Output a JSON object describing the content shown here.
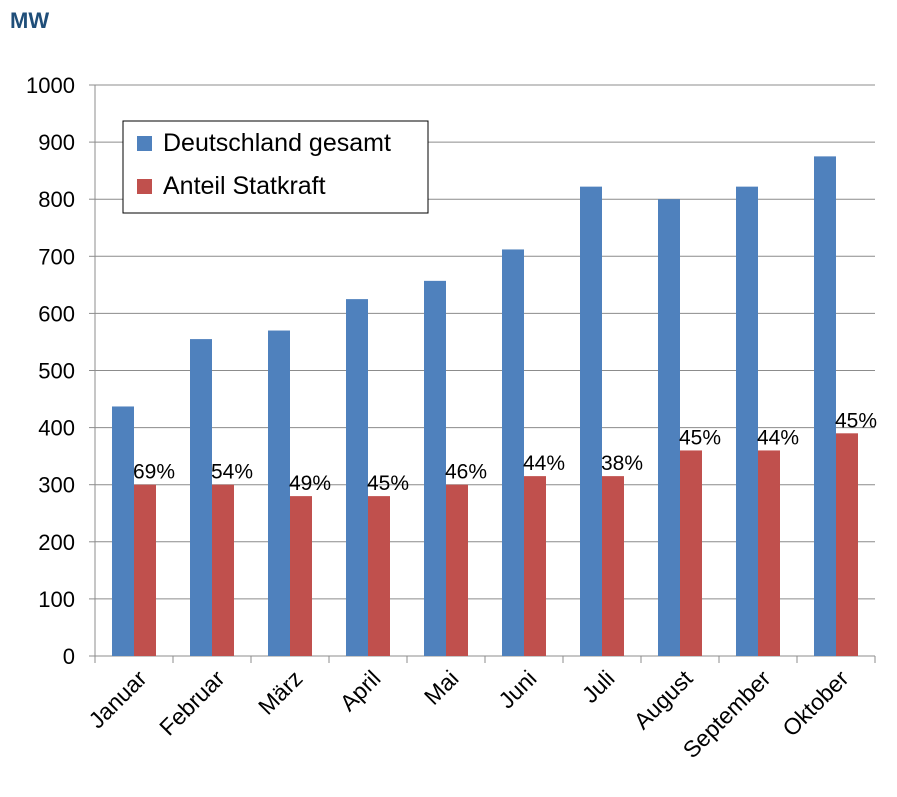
{
  "chart_data": {
    "type": "bar",
    "unit_label": "MW",
    "categories": [
      "Januar",
      "Februar",
      "März",
      "April",
      "Mai",
      "Juni",
      "Juli",
      "August",
      "September",
      "Oktober"
    ],
    "series": [
      {
        "name": "Deutschland gesamt",
        "color": "#4f81bd",
        "values": [
          437,
          555,
          570,
          625,
          657,
          712,
          822,
          800,
          822,
          875
        ]
      },
      {
        "name": "Anteil Statkraft",
        "color": "#c0504d",
        "values": [
          300,
          300,
          280,
          280,
          300,
          315,
          315,
          360,
          360,
          390
        ],
        "data_labels": [
          "69%",
          "54%",
          "49%",
          "45%",
          "46%",
          "44%",
          "38%",
          "45%",
          "44%",
          "45%"
        ]
      }
    ],
    "ylim": [
      0,
      1000
    ],
    "yticks": [
      0,
      100,
      200,
      300,
      400,
      500,
      600,
      700,
      800,
      900,
      1000
    ],
    "grid": true,
    "legend_position": "top-left"
  }
}
